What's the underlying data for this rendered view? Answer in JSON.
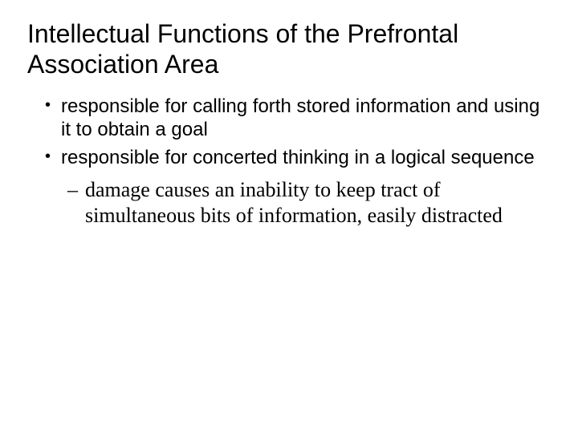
{
  "title": "Intellectual Functions of the Prefrontal Association Area",
  "bullets": [
    "responsible for calling forth stored information and using it to obtain a goal",
    "responsible for concerted thinking in a logical sequence"
  ],
  "subitem": "damage causes an inability to keep tract of simultaneous bits of information, easily distracted",
  "colors": {
    "background": "#ffffff",
    "text": "#000000"
  },
  "fonts": {
    "title_family": "Arial",
    "title_size_pt": 32,
    "bullet_family": "Arial",
    "bullet_size_pt": 24,
    "sub_family": "Times New Roman",
    "sub_size_pt": 26
  }
}
